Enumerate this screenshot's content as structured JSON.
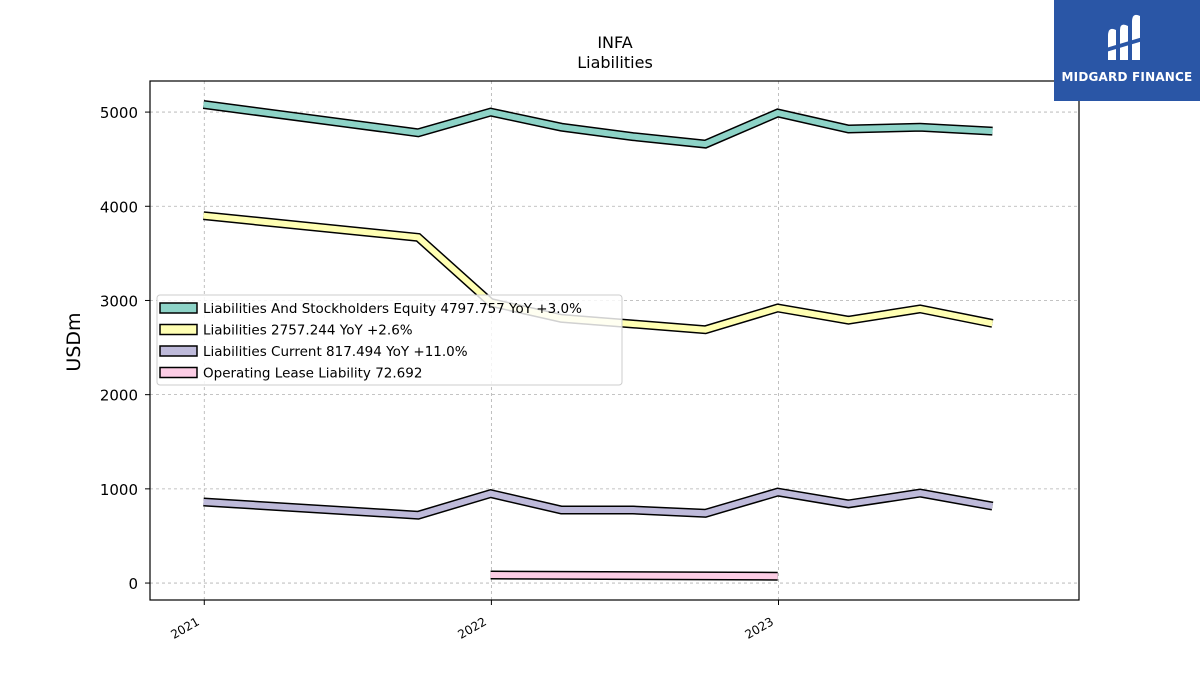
{
  "chart_data": {
    "type": "line",
    "title": "INFA",
    "subtitle": "Liabilities",
    "ylabel": "USDm",
    "xlabel": "",
    "ylim": [
      -180,
      5330
    ],
    "xlim": [
      "2020-10-24",
      "2024-01-18"
    ],
    "x_ticks": [
      {
        "label": "2021",
        "date": "2021-01-01"
      },
      {
        "label": "2022",
        "date": "2022-01-01"
      },
      {
        "label": "2023",
        "date": "2023-01-01"
      }
    ],
    "y_ticks": [
      0,
      1000,
      2000,
      3000,
      4000,
      5000
    ],
    "grid": true,
    "legend_position": "center-left",
    "series": [
      {
        "name": "Liabilities And Stockholders Equity",
        "legend": "Liabilities And Stockholders Equity  4797.757 YoY +3.0%",
        "color": "#8dd3c7",
        "points": [
          {
            "x": "2020-12-31",
            "y": 5080
          },
          {
            "x": "2021-09-30",
            "y": 4780
          },
          {
            "x": "2021-12-31",
            "y": 5000
          },
          {
            "x": "2022-03-31",
            "y": 4840
          },
          {
            "x": "2022-06-30",
            "y": 4740
          },
          {
            "x": "2022-09-30",
            "y": 4660
          },
          {
            "x": "2022-12-31",
            "y": 4990
          },
          {
            "x": "2023-03-31",
            "y": 4820
          },
          {
            "x": "2023-06-30",
            "y": 4840
          },
          {
            "x": "2023-09-30",
            "y": 4798
          }
        ]
      },
      {
        "name": "Liabilities",
        "legend": "Liabilities  2757.244 YoY +2.6%",
        "color": "#ffffb3",
        "points": [
          {
            "x": "2020-12-31",
            "y": 3900
          },
          {
            "x": "2021-09-30",
            "y": 3670
          },
          {
            "x": "2021-12-31",
            "y": 2980
          },
          {
            "x": "2022-03-31",
            "y": 2810
          },
          {
            "x": "2022-06-30",
            "y": 2750
          },
          {
            "x": "2022-09-30",
            "y": 2690
          },
          {
            "x": "2022-12-31",
            "y": 2920
          },
          {
            "x": "2023-03-31",
            "y": 2790
          },
          {
            "x": "2023-06-30",
            "y": 2910
          },
          {
            "x": "2023-09-30",
            "y": 2757
          }
        ]
      },
      {
        "name": "Liabilities Current",
        "legend": "Liabilities Current  817.494 YoY +11.0%",
        "color": "#bebada",
        "points": [
          {
            "x": "2020-12-31",
            "y": 860
          },
          {
            "x": "2021-09-30",
            "y": 720
          },
          {
            "x": "2021-12-31",
            "y": 950
          },
          {
            "x": "2022-03-31",
            "y": 775
          },
          {
            "x": "2022-06-30",
            "y": 775
          },
          {
            "x": "2022-09-30",
            "y": 740
          },
          {
            "x": "2022-12-31",
            "y": 965
          },
          {
            "x": "2023-03-31",
            "y": 840
          },
          {
            "x": "2023-06-30",
            "y": 955
          },
          {
            "x": "2023-09-30",
            "y": 817
          }
        ]
      },
      {
        "name": "Operating Lease Liability",
        "legend": "Operating Lease Liability  72.692",
        "color": "#fccde5",
        "points": [
          {
            "x": "2021-12-31",
            "y": 85
          },
          {
            "x": "2022-12-31",
            "y": 73
          }
        ]
      }
    ]
  },
  "logo": {
    "text": "MIDGARD FINANCE",
    "background": "#2a56a6"
  }
}
